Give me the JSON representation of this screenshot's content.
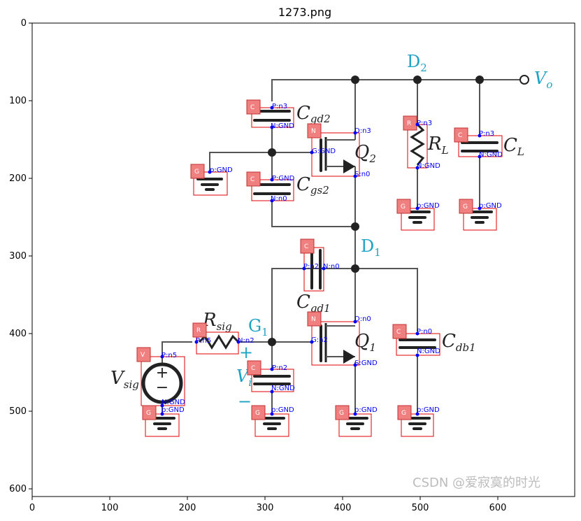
{
  "figure": {
    "title": "1273.png",
    "x_ticks": [
      "0",
      "100",
      "200",
      "300",
      "400",
      "500",
      "600"
    ],
    "y_ticks": [
      "0",
      "100",
      "200",
      "300",
      "400",
      "500",
      "600"
    ]
  },
  "circuit_labels": {
    "d2": "D",
    "d2_sub": "2",
    "vo": "V",
    "vo_sub": "o",
    "cgd2": "C",
    "cgd2_sub": "gd2",
    "rl": "R",
    "rl_sub": "L",
    "cl": "C",
    "cl_sub": "L",
    "q2": "Q",
    "q2_sub": "2",
    "cgs2": "C",
    "cgs2_sub": "gs2",
    "d1": "D",
    "d1_sub": "1",
    "cgd1": "C",
    "cgd1_sub": "gd1",
    "rsig": "R",
    "rsig_sub": "sig",
    "g1": "G",
    "g1_sub": "1",
    "q1": "Q",
    "q1_sub": "1",
    "cdb1": "C",
    "cdb1_sub": "db1",
    "vsig": "V",
    "vsig_sub": "sig",
    "vi": "V",
    "vi_sub": "i",
    "plus": "+",
    "minus": "−",
    "src_plus": "+",
    "src_minus": "−"
  },
  "annotations": [
    {
      "tag": "C",
      "pins": [
        "P:n3",
        "N:GND"
      ]
    },
    {
      "tag": "N",
      "pins": [
        "D:n3",
        "G:GND",
        "S:n0"
      ]
    },
    {
      "tag": "R",
      "pins": [
        "P:n3",
        "N:GND"
      ]
    },
    {
      "tag": "C",
      "pins": [
        "P:n3",
        "N:GND"
      ]
    },
    {
      "tag": "G",
      "pins": [
        "p:GND"
      ]
    },
    {
      "tag": "C",
      "pins": [
        "P:GND",
        "N:n0"
      ]
    },
    {
      "tag": "G",
      "pins": [
        "p:GND"
      ]
    },
    {
      "tag": "G",
      "pins": [
        "p:GND"
      ]
    },
    {
      "tag": "C",
      "pins": [
        "P:n2",
        "N:n0"
      ]
    },
    {
      "tag": "N",
      "pins": [
        "D:n0",
        "G:n2",
        "S:GND"
      ]
    },
    {
      "tag": "C",
      "pins": [
        "P:n0",
        "N:GND"
      ]
    },
    {
      "tag": "R",
      "pins": [
        "P:n5",
        "N:n2"
      ]
    },
    {
      "tag": "V",
      "pins": [
        "P:n5",
        "N:GND"
      ]
    },
    {
      "tag": "C",
      "pins": [
        "P:n2",
        "N:GND"
      ]
    },
    {
      "tag": "G",
      "pins": [
        "p:GND"
      ]
    },
    {
      "tag": "G",
      "pins": [
        "p:GND"
      ]
    },
    {
      "tag": "G",
      "pins": [
        "p:GND"
      ]
    },
    {
      "tag": "G",
      "pins": [
        "p:GND"
      ]
    }
  ],
  "watermark": "CSDN @爱寂寞的时光",
  "colors": {
    "annotation_box": "#e00000",
    "annotation_tag": "#f08080",
    "pin_text": "#0000ff",
    "cyan_label": "#1fa3c4"
  }
}
